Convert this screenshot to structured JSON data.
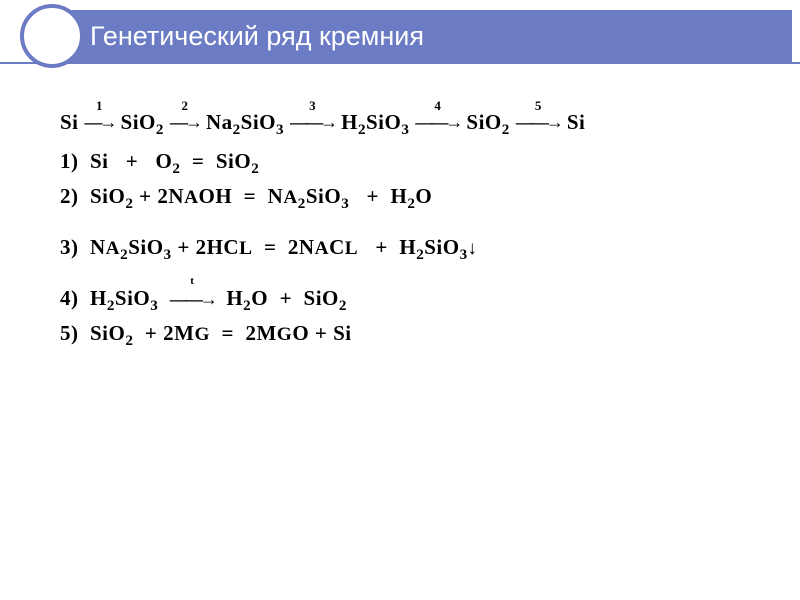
{
  "title": "Генетический ряд кремния",
  "colors": {
    "accent": "#6b7bc4",
    "title_text": "#ffffff",
    "body_text": "#000000",
    "background": "#ffffff"
  },
  "typography": {
    "title_fontsize": 27,
    "body_fontsize": 21,
    "title_family": "Arial",
    "body_family": "Times New Roman"
  },
  "chain": {
    "nodes": [
      "Si",
      "SiO2",
      "Na2SiO3",
      "H2SiO3",
      "SiO2",
      "Si"
    ],
    "step_labels": [
      "1",
      "2",
      "3",
      "4",
      "5"
    ]
  },
  "equations": [
    {
      "n": "1)",
      "lhs": "Si   +   O2",
      "op": "=",
      "rhs": "SiO2"
    },
    {
      "n": "2)",
      "lhs": "SiO2 + 2NaOH",
      "op": "=",
      "rhs": "Na2SiO3   +  H2O"
    },
    {
      "n": "3)",
      "lhs": "Na2SiO3 + 2HCl",
      "op": "=",
      "rhs": "2NaCl   +  H2SiO3↓"
    },
    {
      "n": "4)",
      "lhs": "H2SiO3",
      "op": "→",
      "rhs": "H2O  +  SiO2",
      "over": "t"
    },
    {
      "n": "5)",
      "lhs": "SiO2  + 2Mg",
      "op": "=",
      "rhs": "2MgO + Si"
    }
  ]
}
